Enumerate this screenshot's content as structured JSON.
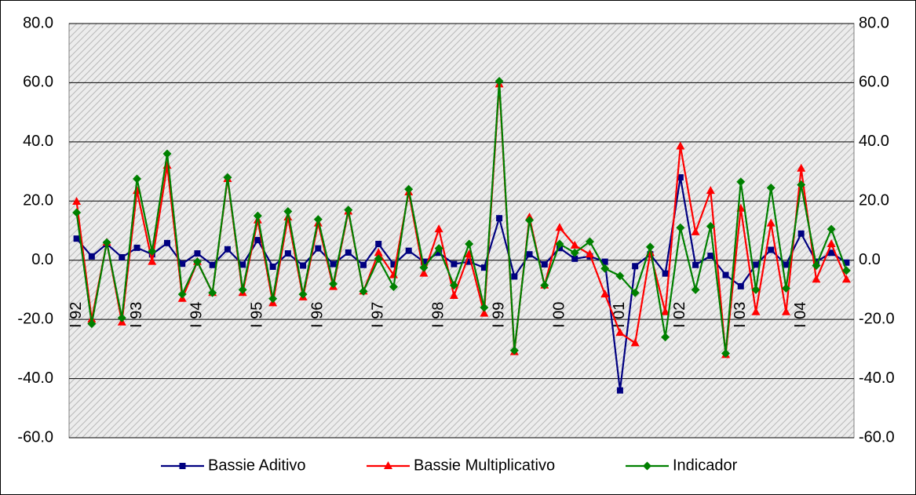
{
  "chart_data": {
    "type": "line",
    "categories": [
      "I 92",
      null,
      null,
      null,
      "I 93",
      null,
      null,
      null,
      "I 94",
      null,
      null,
      null,
      "I 95",
      null,
      null,
      null,
      "I 96",
      null,
      null,
      null,
      "I 97",
      null,
      null,
      null,
      "I 98",
      null,
      null,
      null,
      "I 99",
      null,
      null,
      null,
      "I 00",
      null,
      null,
      null,
      "I 01",
      null,
      null,
      null,
      "I 02",
      null,
      null,
      null,
      "I 03",
      null,
      null,
      null,
      "I 04",
      null,
      null,
      null
    ],
    "series": [
      {
        "name": "Bassie Aditivo",
        "color": "#000080",
        "marker": "square",
        "values": [
          7.3,
          1.3,
          5.5,
          1.0,
          4.2,
          2.0,
          5.8,
          -1.2,
          2.3,
          -1.6,
          3.7,
          -1.5,
          6.8,
          -2.2,
          2.3,
          -1.8,
          4.0,
          -1.3,
          2.6,
          -1.6,
          5.5,
          -1.4,
          3.2,
          -0.5,
          2.5,
          -1.3,
          -0.5,
          -2.5,
          14.2,
          -5.5,
          2.0,
          -1.4,
          4.1,
          0.5,
          1.3,
          -0.5,
          -44.0,
          -2.0,
          2.0,
          -4.5,
          28.0,
          -1.6,
          1.5,
          -5.0,
          -8.8,
          -1.5,
          3.5,
          -1.5,
          9.0,
          -0.5,
          2.5,
          -0.8
        ]
      },
      {
        "name": "Bassie Multiplicativo",
        "color": "#ff0000",
        "marker": "triangle",
        "values": [
          19.8,
          -20.0,
          6.0,
          -21.0,
          23.5,
          -0.5,
          32.0,
          -13.0,
          -0.5,
          -11.0,
          27.5,
          -11.0,
          13.5,
          -14.5,
          14.5,
          -12.5,
          12.5,
          -9.0,
          16.5,
          -10.5,
          2.5,
          -5.0,
          23.0,
          -4.5,
          10.5,
          -12.0,
          2.0,
          -18.0,
          59.5,
          -31.0,
          14.5,
          -8.5,
          11.0,
          5.0,
          2.0,
          -11.5,
          -24.5,
          -28.0,
          2.5,
          -17.5,
          38.5,
          9.5,
          23.5,
          -32.0,
          17.5,
          -17.5,
          12.5,
          -17.5,
          31.0,
          -6.5,
          5.5,
          -6.5
        ]
      },
      {
        "name": "Indicador",
        "color": "#008000",
        "marker": "diamond",
        "values": [
          16.1,
          -21.5,
          6.0,
          -19.5,
          27.5,
          3.0,
          36.0,
          -11.5,
          -0.5,
          -11.0,
          28.0,
          -10.0,
          15.0,
          -13.0,
          16.5,
          -11.5,
          13.8,
          -8.0,
          17.0,
          -10.5,
          0.5,
          -9.0,
          24.0,
          -2.5,
          4.0,
          -8.5,
          5.5,
          -16.0,
          60.5,
          -30.5,
          13.5,
          -8.5,
          5.5,
          2.5,
          6.3,
          -2.8,
          -5.3,
          -11.0,
          4.5,
          -26.0,
          11.0,
          -10.0,
          11.5,
          -31.5,
          26.5,
          -10.0,
          24.5,
          -9.5,
          25.5,
          -1.8,
          10.5,
          -3.5
        ]
      }
    ],
    "ylim": [
      -60,
      80
    ],
    "yticks": [
      {
        "value": -60,
        "label": "-60.0"
      },
      {
        "value": -40,
        "label": "-40.0"
      },
      {
        "value": -20,
        "label": "-20.0"
      },
      {
        "value": 0,
        "label": "0.0"
      },
      {
        "value": 20,
        "label": "20.0"
      },
      {
        "value": 40,
        "label": "40.0"
      },
      {
        "value": 60,
        "label": "60.0"
      },
      {
        "value": 80,
        "label": "80.0"
      }
    ],
    "grid": true,
    "legend": "bottom"
  }
}
